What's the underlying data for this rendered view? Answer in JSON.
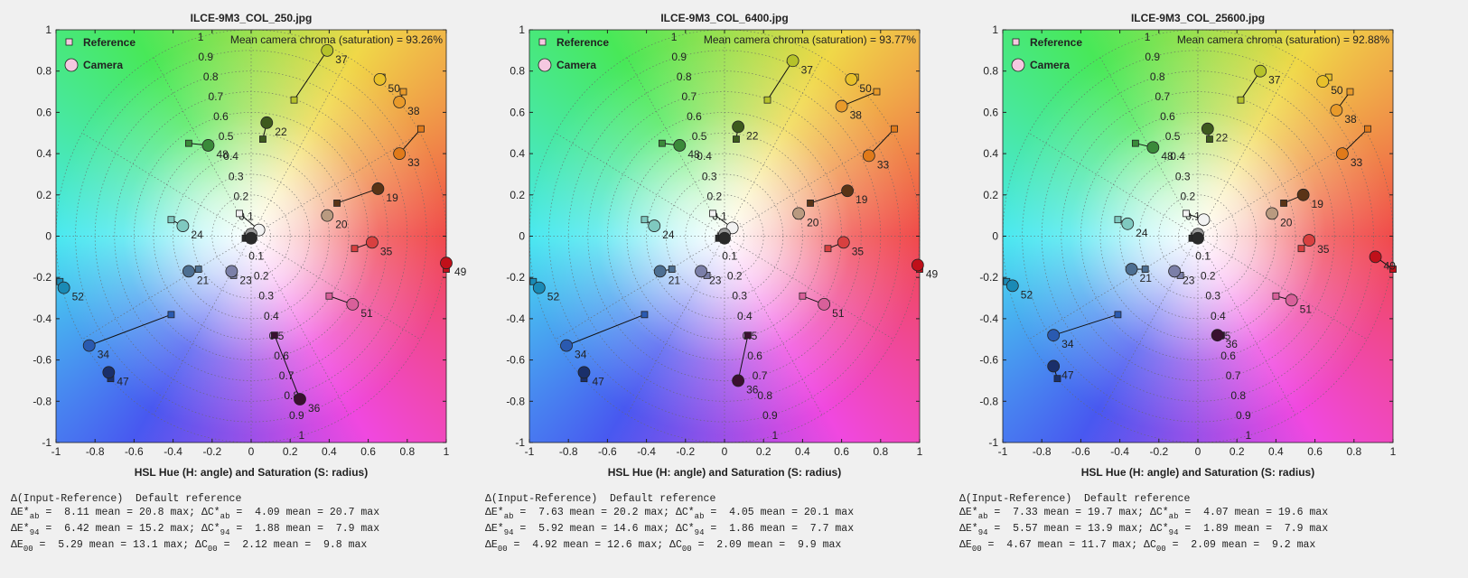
{
  "chart_data": [
    {
      "type": "scatter",
      "title": "ILCE-9M3_COL_250.jpg",
      "annotation": "Mean camera chroma (saturation) = 93.26%",
      "xlabel": "HSL Hue (H: angle) and Saturation (S: radius)",
      "xlim": [
        -1,
        1
      ],
      "ylim": [
        -1,
        1
      ],
      "xticks": [
        -1,
        -0.8,
        -0.6,
        -0.4,
        -0.2,
        0,
        0.2,
        0.4,
        0.6,
        0.8,
        1
      ],
      "yticks": [
        -1,
        -0.8,
        -0.6,
        -0.4,
        -0.2,
        0,
        0.2,
        0.4,
        0.6,
        0.8,
        1
      ],
      "rticks": [
        0.1,
        0.2,
        0.3,
        0.4,
        0.5,
        0.6,
        0.7,
        0.8,
        0.9,
        1
      ],
      "grid": true,
      "legend": "upper left",
      "point_labels": [
        "37",
        "50",
        "38",
        "33",
        "22",
        "48",
        "19",
        "20",
        "24",
        "35",
        "49",
        "21",
        "23",
        "52",
        "51",
        "34",
        "47",
        "36",
        null,
        null,
        null
      ],
      "point_colors": [
        "#b5c22a",
        "#e8c02a",
        "#e89a2a",
        "#e07a1a",
        "#3d5a1e",
        "#3a8a3a",
        "#5a3416",
        "#b99a80",
        "#7fc9c0",
        "#d84040",
        "#c0101a",
        "#4d6f92",
        "#7b7fa8",
        "#1a8ab5",
        "#d8609a",
        "#2a5ab0",
        "#1a2f6a",
        "#3a1030",
        "#f2f2f2",
        "#9a9a9a",
        "#2a2a2a"
      ],
      "series": [
        {
          "name": "Reference",
          "marker": "square",
          "x": [
            0.22,
            0.67,
            0.78,
            0.87,
            0.06,
            -0.32,
            0.44,
            0.38,
            -0.41,
            0.53,
            1.0,
            -0.27,
            -0.09,
            -0.98,
            0.4,
            -0.41,
            -0.72,
            0.12,
            -0.06,
            -0.02,
            -0.03
          ],
          "y": [
            0.66,
            0.77,
            0.7,
            0.52,
            0.47,
            0.45,
            0.16,
            0.1,
            0.08,
            -0.06,
            -0.16,
            -0.16,
            -0.19,
            -0.22,
            -0.29,
            -0.38,
            -0.69,
            -0.48,
            0.11,
            0.0,
            -0.01
          ]
        },
        {
          "name": "Camera",
          "marker": "circle",
          "x": [
            0.39,
            0.66,
            0.76,
            0.76,
            0.08,
            -0.22,
            0.65,
            0.39,
            -0.35,
            0.62,
            1.0,
            -0.32,
            -0.1,
            -0.96,
            0.52,
            -0.83,
            -0.73,
            0.25,
            0.04,
            0.0,
            0.0
          ],
          "y": [
            0.9,
            0.76,
            0.65,
            0.4,
            0.55,
            0.44,
            0.23,
            0.1,
            0.05,
            -0.03,
            -0.13,
            -0.17,
            -0.17,
            -0.25,
            -0.33,
            -0.53,
            -0.66,
            -0.79,
            0.03,
            0.01,
            -0.01
          ]
        }
      ],
      "stats": [
        [
          "Δ(Input-Reference)  Default reference"
        ],
        [
          "ΔE*",
          "ab",
          " =  8.11 mean = 20.8 max; ΔC*",
          "ab",
          " =  4.09 mean = 20.7 max"
        ],
        [
          "ΔE*",
          "94",
          " =  6.42 mean = 15.2 max; ΔC*",
          "94",
          " =  1.88 mean =  7.9 max"
        ],
        [
          "ΔE",
          "00",
          " =  5.29 mean = 13.1 max; ΔC",
          "00",
          " =  2.12 mean =  9.8 max"
        ]
      ]
    },
    {
      "type": "scatter",
      "title": "ILCE-9M3_COL_6400.jpg",
      "annotation": "Mean camera chroma (saturation) = 93.77%",
      "xlabel": "HSL Hue (H: angle) and Saturation (S: radius)",
      "xlim": [
        -1,
        1
      ],
      "ylim": [
        -1,
        1
      ],
      "xticks": [
        -1,
        -0.8,
        -0.6,
        -0.4,
        -0.2,
        0,
        0.2,
        0.4,
        0.6,
        0.8,
        1
      ],
      "yticks": [
        -1,
        -0.8,
        -0.6,
        -0.4,
        -0.2,
        0,
        0.2,
        0.4,
        0.6,
        0.8,
        1
      ],
      "rticks": [
        0.1,
        0.2,
        0.3,
        0.4,
        0.5,
        0.6,
        0.7,
        0.8,
        0.9,
        1
      ],
      "grid": true,
      "legend": "upper left",
      "point_labels": [
        "37",
        "50",
        "38",
        "33",
        "22",
        "48",
        "19",
        "20",
        "24",
        "35",
        "49",
        "21",
        "23",
        "52",
        "51",
        "34",
        "47",
        "36",
        null,
        null,
        null
      ],
      "point_colors": [
        "#b5c22a",
        "#e8c02a",
        "#e89a2a",
        "#e07a1a",
        "#3d5a1e",
        "#3a8a3a",
        "#5a3416",
        "#b99a80",
        "#7fc9c0",
        "#d84040",
        "#c0101a",
        "#4d6f92",
        "#7b7fa8",
        "#1a8ab5",
        "#d8609a",
        "#2a5ab0",
        "#1a2f6a",
        "#3a1030",
        "#f2f2f2",
        "#9a9a9a",
        "#2a2a2a"
      ],
      "series": [
        {
          "name": "Reference",
          "marker": "square",
          "x": [
            0.22,
            0.67,
            0.78,
            0.87,
            0.06,
            -0.32,
            0.44,
            0.38,
            -0.41,
            0.53,
            1.0,
            -0.27,
            -0.09,
            -0.98,
            0.4,
            -0.41,
            -0.72,
            0.12,
            -0.06,
            -0.02,
            -0.03
          ],
          "y": [
            0.66,
            0.77,
            0.7,
            0.52,
            0.47,
            0.45,
            0.16,
            0.1,
            0.08,
            -0.06,
            -0.16,
            -0.16,
            -0.19,
            -0.22,
            -0.29,
            -0.38,
            -0.69,
            -0.48,
            0.11,
            0.0,
            -0.01
          ]
        },
        {
          "name": "Camera",
          "marker": "circle",
          "x": [
            0.35,
            0.65,
            0.6,
            0.74,
            0.07,
            -0.23,
            0.63,
            0.38,
            -0.36,
            0.61,
            0.99,
            -0.33,
            -0.12,
            -0.95,
            0.51,
            -0.81,
            -0.72,
            0.07,
            0.04,
            0.0,
            0.0
          ],
          "y": [
            0.85,
            0.76,
            0.63,
            0.39,
            0.53,
            0.44,
            0.22,
            0.11,
            0.05,
            -0.03,
            -0.14,
            -0.17,
            -0.17,
            -0.25,
            -0.33,
            -0.53,
            -0.66,
            -0.7,
            0.04,
            0.01,
            -0.01
          ]
        }
      ],
      "stats": [
        [
          "Δ(Input-Reference)  Default reference"
        ],
        [
          "ΔE*",
          "ab",
          " =  7.63 mean = 20.2 max; ΔC*",
          "ab",
          " =  4.05 mean = 20.1 max"
        ],
        [
          "ΔE*",
          "94",
          " =  5.92 mean = 14.6 max; ΔC*",
          "94",
          " =  1.86 mean =  7.7 max"
        ],
        [
          "ΔE",
          "00",
          " =  4.92 mean = 12.6 max; ΔC",
          "00",
          " =  2.09 mean =  9.9 max"
        ]
      ]
    },
    {
      "type": "scatter",
      "title": "ILCE-9M3_COL_25600.jpg",
      "annotation": "Mean camera chroma (saturation) = 92.88%",
      "xlabel": "HSL Hue (H: angle) and Saturation (S: radius)",
      "xlim": [
        -1,
        1
      ],
      "ylim": [
        -1,
        1
      ],
      "xticks": [
        -1,
        -0.8,
        -0.6,
        -0.4,
        -0.2,
        0,
        0.2,
        0.4,
        0.6,
        0.8,
        1
      ],
      "yticks": [
        -1,
        -0.8,
        -0.6,
        -0.4,
        -0.2,
        0,
        0.2,
        0.4,
        0.6,
        0.8,
        1
      ],
      "rticks": [
        0.1,
        0.2,
        0.3,
        0.4,
        0.5,
        0.6,
        0.7,
        0.8,
        0.9,
        1
      ],
      "grid": true,
      "legend": "upper left",
      "point_labels": [
        "37",
        "50",
        "38",
        "33",
        "22",
        "48",
        "19",
        "20",
        "24",
        "35",
        "49",
        "21",
        "23",
        "52",
        "51",
        "34",
        "47",
        "36",
        null,
        null,
        null
      ],
      "point_colors": [
        "#b5c22a",
        "#e8c02a",
        "#e89a2a",
        "#e07a1a",
        "#3d5a1e",
        "#3a8a3a",
        "#5a3416",
        "#b99a80",
        "#7fc9c0",
        "#d84040",
        "#c0101a",
        "#4d6f92",
        "#7b7fa8",
        "#1a8ab5",
        "#d8609a",
        "#2a5ab0",
        "#1a2f6a",
        "#3a1030",
        "#f2f2f2",
        "#9a9a9a",
        "#2a2a2a"
      ],
      "series": [
        {
          "name": "Reference",
          "marker": "square",
          "x": [
            0.22,
            0.67,
            0.78,
            0.87,
            0.06,
            -0.32,
            0.44,
            0.38,
            -0.41,
            0.53,
            1.0,
            -0.27,
            -0.09,
            -0.98,
            0.4,
            -0.41,
            -0.72,
            0.12,
            -0.06,
            -0.02,
            -0.03
          ],
          "y": [
            0.66,
            0.77,
            0.7,
            0.52,
            0.47,
            0.45,
            0.16,
            0.1,
            0.08,
            -0.06,
            -0.16,
            -0.16,
            -0.19,
            -0.22,
            -0.29,
            -0.38,
            -0.69,
            -0.48,
            0.11,
            0.0,
            -0.01
          ]
        },
        {
          "name": "Camera",
          "marker": "circle",
          "x": [
            0.32,
            0.64,
            0.71,
            0.74,
            0.05,
            -0.23,
            0.54,
            0.38,
            -0.36,
            0.57,
            0.91,
            -0.34,
            -0.12,
            -0.95,
            0.48,
            -0.74,
            -0.74,
            0.1,
            0.03,
            0.0,
            0.0
          ],
          "y": [
            0.8,
            0.75,
            0.61,
            0.4,
            0.52,
            0.43,
            0.2,
            0.11,
            0.06,
            -0.02,
            -0.1,
            -0.16,
            -0.17,
            -0.24,
            -0.31,
            -0.48,
            -0.63,
            -0.48,
            0.08,
            0.01,
            -0.01
          ]
        }
      ],
      "stats": [
        [
          "Δ(Input-Reference)  Default reference"
        ],
        [
          "ΔE*",
          "ab",
          " =  7.33 mean = 19.7 max; ΔC*",
          "ab",
          " =  4.07 mean = 19.6 max"
        ],
        [
          "ΔE*",
          "94",
          " =  5.57 mean = 13.9 max; ΔC*",
          "94",
          " =  1.89 mean =  7.9 max"
        ],
        [
          "ΔE",
          "00",
          " =  4.67 mean = 11.7 max; ΔC",
          "00",
          " =  2.09 mean =  9.2 max"
        ]
      ]
    }
  ]
}
